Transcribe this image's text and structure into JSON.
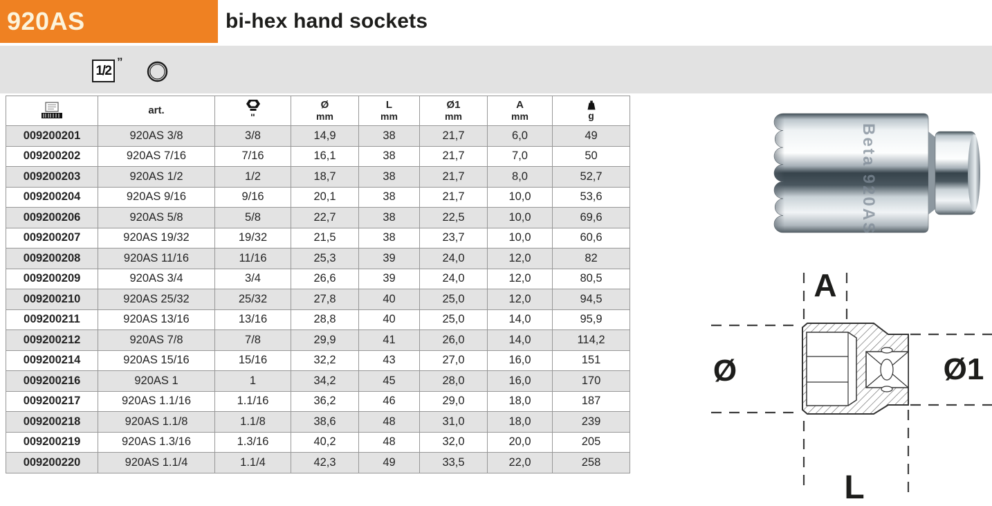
{
  "header": {
    "product_code": "920AS",
    "title": "bi-hex hand sockets"
  },
  "pictograms": {
    "drive_size": "1/2",
    "drive_unit": "”",
    "ring_icon": "round-bi-hex-socket"
  },
  "table": {
    "columns": [
      {
        "icon": "barcode-icon"
      },
      {
        "label": "art."
      },
      {
        "icon": "nut-icon",
        "unit": "\""
      },
      {
        "label": "Ø",
        "unit": "mm"
      },
      {
        "label": "L",
        "unit": "mm"
      },
      {
        "label": "Ø1",
        "unit": "mm"
      },
      {
        "label": "A",
        "unit": "mm"
      },
      {
        "icon": "weight-icon",
        "unit": "g"
      }
    ],
    "rows": [
      [
        "009200201",
        "920AS 3/8",
        "3/8",
        "14,9",
        "38",
        "21,7",
        "6,0",
        "49"
      ],
      [
        "009200202",
        "920AS 7/16",
        "7/16",
        "16,1",
        "38",
        "21,7",
        "7,0",
        "50"
      ],
      [
        "009200203",
        "920AS 1/2",
        "1/2",
        "18,7",
        "38",
        "21,7",
        "8,0",
        "52,7"
      ],
      [
        "009200204",
        "920AS 9/16",
        "9/16",
        "20,1",
        "38",
        "21,7",
        "10,0",
        "53,6"
      ],
      [
        "009200206",
        "920AS 5/8",
        "5/8",
        "22,7",
        "38",
        "22,5",
        "10,0",
        "69,6"
      ],
      [
        "009200207",
        "920AS 19/32",
        "19/32",
        "21,5",
        "38",
        "23,7",
        "10,0",
        "60,6"
      ],
      [
        "009200208",
        "920AS 11/16",
        "11/16",
        "25,3",
        "39",
        "24,0",
        "12,0",
        "82"
      ],
      [
        "009200209",
        "920AS 3/4",
        "3/4",
        "26,6",
        "39",
        "24,0",
        "12,0",
        "80,5"
      ],
      [
        "009200210",
        "920AS 25/32",
        "25/32",
        "27,8",
        "40",
        "25,0",
        "12,0",
        "94,5"
      ],
      [
        "009200211",
        "920AS 13/16",
        "13/16",
        "28,8",
        "40",
        "25,0",
        "14,0",
        "95,9"
      ],
      [
        "009200212",
        "920AS 7/8",
        "7/8",
        "29,9",
        "41",
        "26,0",
        "14,0",
        "114,2"
      ],
      [
        "009200214",
        "920AS 15/16",
        "15/16",
        "32,2",
        "43",
        "27,0",
        "16,0",
        "151"
      ],
      [
        "009200216",
        "920AS 1",
        "1",
        "34,2",
        "45",
        "28,0",
        "16,0",
        "170"
      ],
      [
        "009200217",
        "920AS 1.1/16",
        "1.1/16",
        "36,2",
        "46",
        "29,0",
        "18,0",
        "187"
      ],
      [
        "009200218",
        "920AS 1.1/8",
        "1.1/8",
        "38,6",
        "48",
        "31,0",
        "18,0",
        "239"
      ],
      [
        "009200219",
        "920AS 1.3/16",
        "1.3/16",
        "40,2",
        "48",
        "32,0",
        "20,0",
        "205"
      ],
      [
        "009200220",
        "920AS 1.1/4",
        "1.1/4",
        "42,3",
        "49",
        "33,5",
        "22,0",
        "258"
      ]
    ]
  },
  "drawing": {
    "label_top": "A",
    "label_left": "Ø",
    "label_right": "Ø1",
    "label_bottom": "L"
  },
  "photo": {
    "engraving": "Beta 920AS"
  },
  "colors": {
    "accent_orange": "#EF8122",
    "band_gray": "#E2E2E2",
    "row_gray": "#E3E3E3"
  }
}
